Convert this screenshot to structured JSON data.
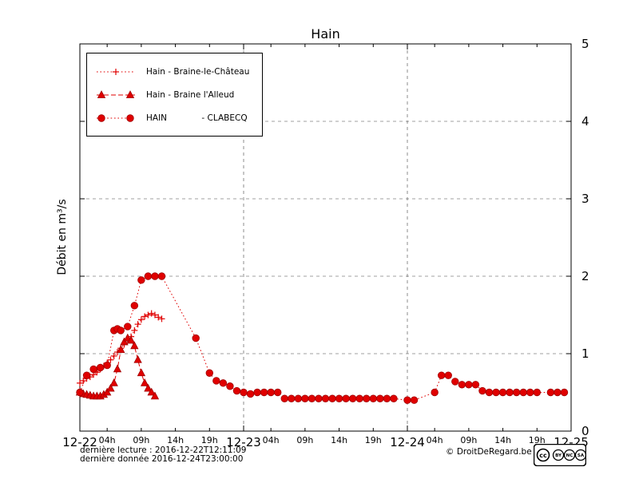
{
  "footer": {
    "last_reading": "dernière lecture : 2016-12-22T12:11:09",
    "last_data": "dernière donnée  2016-12-24T23:00:00",
    "copyright": "© DroitDeRegard.be"
  },
  "license_badge": {
    "cc": "cc",
    "by": "BY",
    "nc": "NC",
    "sa": "SA"
  },
  "chart_data": {
    "type": "line",
    "title": "Hain",
    "xlabel": "",
    "ylabel": "Débit en m³/s",
    "xlim_hours": [
      0,
      72
    ],
    "ylim": [
      0,
      5
    ],
    "y_ticks": [
      0,
      1,
      2,
      3,
      4,
      5
    ],
    "x_day_ticks": [
      {
        "hour": 0,
        "label": "12-22"
      },
      {
        "hour": 24,
        "label": "12-23"
      },
      {
        "hour": 48,
        "label": "12-24"
      },
      {
        "hour": 72,
        "label": "12-25"
      }
    ],
    "x_hour_ticks": [
      {
        "hour": 4,
        "label": "04h"
      },
      {
        "hour": 9,
        "label": "09h"
      },
      {
        "hour": 14,
        "label": "14h"
      },
      {
        "hour": 19,
        "label": "19h"
      },
      {
        "hour": 28,
        "label": "04h"
      },
      {
        "hour": 33,
        "label": "09h"
      },
      {
        "hour": 38,
        "label": "14h"
      },
      {
        "hour": 43,
        "label": "19h"
      },
      {
        "hour": 52,
        "label": "04h"
      },
      {
        "hour": 57,
        "label": "09h"
      },
      {
        "hour": 62,
        "label": "14h"
      },
      {
        "hour": 67,
        "label": "19h"
      }
    ],
    "grid": {
      "h_lines": [
        1,
        2,
        3,
        4
      ],
      "v_lines": [
        24,
        48
      ]
    },
    "legend_position": "top-left",
    "series": [
      {
        "name": "Hain - Braine-le-Château",
        "marker": "plus",
        "line": "dotted",
        "color": "#e00000",
        "points": [
          [
            0,
            0.62
          ],
          [
            0.5,
            0.65
          ],
          [
            1,
            0.68
          ],
          [
            1.5,
            0.7
          ],
          [
            2,
            0.73
          ],
          [
            2.5,
            0.76
          ],
          [
            3,
            0.8
          ],
          [
            3.5,
            0.84
          ],
          [
            4,
            0.88
          ],
          [
            4.5,
            0.92
          ],
          [
            5,
            0.97
          ],
          [
            5.5,
            1.02
          ],
          [
            6,
            1.07
          ],
          [
            6.5,
            1.12
          ],
          [
            7,
            1.17
          ],
          [
            7.5,
            1.22
          ],
          [
            8,
            1.3
          ],
          [
            8.5,
            1.38
          ],
          [
            9,
            1.44
          ],
          [
            9.5,
            1.48
          ],
          [
            10,
            1.5
          ],
          [
            10.5,
            1.52
          ],
          [
            11,
            1.5
          ],
          [
            11.5,
            1.47
          ],
          [
            12,
            1.45
          ]
        ]
      },
      {
        "name": "Hain - Braine l'Alleud",
        "marker": "triangle",
        "line": "dashed",
        "color": "#e00000",
        "points": [
          [
            0,
            0.5
          ],
          [
            0.5,
            0.48
          ],
          [
            1,
            0.47
          ],
          [
            1.5,
            0.46
          ],
          [
            2,
            0.45
          ],
          [
            2.5,
            0.45
          ],
          [
            3,
            0.45
          ],
          [
            3.5,
            0.47
          ],
          [
            4,
            0.5
          ],
          [
            4.5,
            0.55
          ],
          [
            5,
            0.62
          ],
          [
            5.5,
            0.8
          ],
          [
            6,
            1.05
          ],
          [
            6.5,
            1.15
          ],
          [
            7,
            1.2
          ],
          [
            7.5,
            1.17
          ],
          [
            8,
            1.1
          ],
          [
            8.5,
            0.92
          ],
          [
            9,
            0.75
          ],
          [
            9.5,
            0.62
          ],
          [
            10,
            0.55
          ],
          [
            10.5,
            0.5
          ],
          [
            11,
            0.45
          ]
        ]
      },
      {
        "name": "HAIN             - CLABECQ",
        "marker": "circle",
        "line": "dotted",
        "color": "#e00000",
        "points": [
          [
            0,
            0.5
          ],
          [
            1,
            0.72
          ],
          [
            2,
            0.8
          ],
          [
            3,
            0.82
          ],
          [
            4,
            0.85
          ],
          [
            5,
            1.3
          ],
          [
            5.5,
            1.32
          ],
          [
            6,
            1.3
          ],
          [
            7,
            1.35
          ],
          [
            8,
            1.62
          ],
          [
            9,
            1.95
          ],
          [
            10,
            2.0
          ],
          [
            11,
            2.0
          ],
          [
            12,
            2.0
          ],
          [
            17,
            1.2
          ],
          [
            19,
            0.75
          ],
          [
            20,
            0.65
          ],
          [
            21,
            0.62
          ],
          [
            22,
            0.58
          ],
          [
            23,
            0.52
          ],
          [
            24,
            0.5
          ],
          [
            25,
            0.48
          ],
          [
            26,
            0.5
          ],
          [
            27,
            0.5
          ],
          [
            28,
            0.5
          ],
          [
            29,
            0.5
          ],
          [
            30,
            0.42
          ],
          [
            31,
            0.42
          ],
          [
            32,
            0.42
          ],
          [
            33,
            0.42
          ],
          [
            34,
            0.42
          ],
          [
            35,
            0.42
          ],
          [
            36,
            0.42
          ],
          [
            37,
            0.42
          ],
          [
            38,
            0.42
          ],
          [
            39,
            0.42
          ],
          [
            40,
            0.42
          ],
          [
            41,
            0.42
          ],
          [
            42,
            0.42
          ],
          [
            43,
            0.42
          ],
          [
            44,
            0.42
          ],
          [
            45,
            0.42
          ],
          [
            46,
            0.42
          ],
          [
            48,
            0.4
          ],
          [
            49,
            0.4
          ],
          [
            52,
            0.5
          ],
          [
            53,
            0.72
          ],
          [
            54,
            0.72
          ],
          [
            55,
            0.64
          ],
          [
            56,
            0.6
          ],
          [
            57,
            0.6
          ],
          [
            58,
            0.6
          ],
          [
            59,
            0.52
          ],
          [
            60,
            0.5
          ],
          [
            61,
            0.5
          ],
          [
            62,
            0.5
          ],
          [
            63,
            0.5
          ],
          [
            64,
            0.5
          ],
          [
            65,
            0.5
          ],
          [
            66,
            0.5
          ],
          [
            67,
            0.5
          ],
          [
            69,
            0.5
          ],
          [
            70,
            0.5
          ],
          [
            71,
            0.5
          ]
        ]
      }
    ]
  }
}
